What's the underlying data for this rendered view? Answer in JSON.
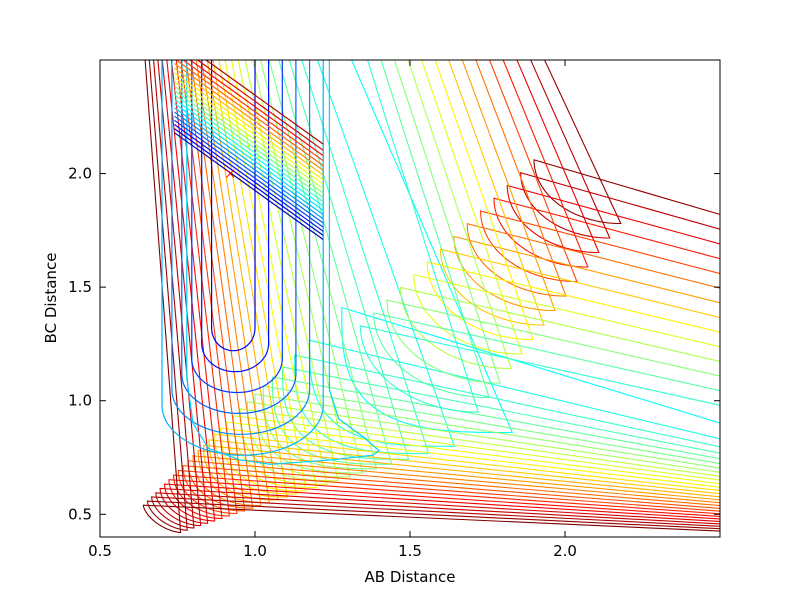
{
  "chart_data": {
    "type": "contour",
    "title": "",
    "xlabel": "AB Distance",
    "ylabel": "BC Distance",
    "xlim": [
      0.5,
      2.5
    ],
    "ylim": [
      0.4,
      2.5
    ],
    "x_ticks": [
      0.5,
      1.0,
      1.5,
      2.0
    ],
    "y_ticks": [
      0.5,
      1.0,
      1.5,
      2.0
    ],
    "x_tick_labels": [
      "0.5",
      "1.0",
      "1.5",
      "2.0"
    ],
    "y_tick_labels": [
      "0.5",
      "1.0",
      "1.5",
      "2.0"
    ],
    "grid": false,
    "legend": "none",
    "colormap": "jet",
    "colormap_stops": [
      "#00007f",
      "#0000ff",
      "#007fff",
      "#00ffff",
      "#7fff7f",
      "#ffff00",
      "#ff7f00",
      "#ff0000",
      "#7f0000"
    ],
    "outer_contour_levels": 28,
    "well_contour_levels": 6,
    "marker": {
      "type": "x",
      "x": 0.92,
      "y": 2.0,
      "color": "#ff0000"
    },
    "trajectory_band": {
      "x_range": [
        0.74,
        1.22
      ],
      "start_y": 2.18,
      "slope": -0.98,
      "lines": 22
    },
    "notes": ""
  }
}
